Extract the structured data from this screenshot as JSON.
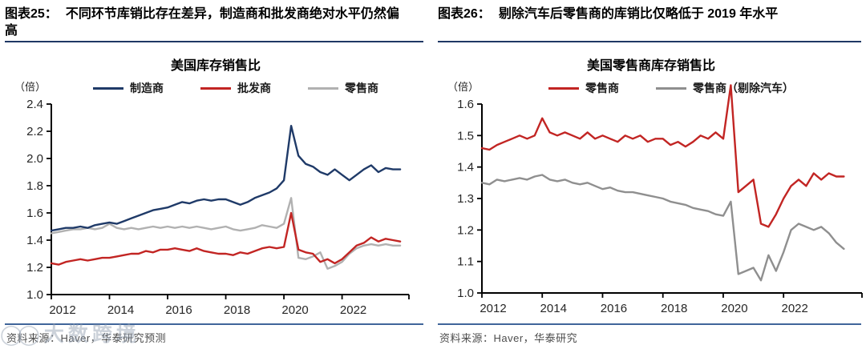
{
  "page": {
    "watermark": "大数跨境"
  },
  "panels": [
    {
      "figure_label": "图表25：",
      "figure_title": "不同环节库销比存在差异，制造商和批发商绝对水平仍然偏高",
      "source": "资料来源：Haver，华泰研究预测"
    },
    {
      "figure_label": "图表26：",
      "figure_title": "剔除汽车后零售商的库销比仅略低于 2019 年水平",
      "source": "资料来源：Haver，华泰研究"
    }
  ],
  "chart_data": [
    {
      "type": "line",
      "title": "美国库存销售比",
      "unit_label": "（倍）",
      "ylim": [
        1.0,
        2.4
      ],
      "yticks": [
        1.0,
        1.2,
        1.4,
        1.6,
        1.8,
        2.0,
        2.2,
        2.4
      ],
      "xlim": [
        2012,
        2024.3
      ],
      "xticks": [
        2012,
        2014,
        2016,
        2018,
        2020,
        2022
      ],
      "x_start": 2012.0,
      "x_step": 0.25,
      "grid": false,
      "legend_position": "top",
      "series": [
        {
          "name": "制造商",
          "color": "#1f3a68",
          "values": [
            1.47,
            1.48,
            1.49,
            1.49,
            1.5,
            1.49,
            1.51,
            1.52,
            1.53,
            1.52,
            1.54,
            1.56,
            1.58,
            1.6,
            1.62,
            1.63,
            1.64,
            1.66,
            1.68,
            1.67,
            1.69,
            1.7,
            1.69,
            1.7,
            1.7,
            1.68,
            1.66,
            1.68,
            1.71,
            1.73,
            1.75,
            1.78,
            1.84,
            2.24,
            2.02,
            1.96,
            1.94,
            1.9,
            1.88,
            1.92,
            1.88,
            1.84,
            1.88,
            1.92,
            1.95,
            1.9,
            1.93,
            1.92,
            1.92
          ]
        },
        {
          "name": "批发商",
          "color": "#c22523",
          "values": [
            1.23,
            1.22,
            1.24,
            1.25,
            1.26,
            1.25,
            1.26,
            1.27,
            1.27,
            1.28,
            1.29,
            1.3,
            1.3,
            1.32,
            1.31,
            1.33,
            1.33,
            1.34,
            1.33,
            1.32,
            1.34,
            1.32,
            1.31,
            1.3,
            1.3,
            1.29,
            1.31,
            1.3,
            1.32,
            1.34,
            1.35,
            1.34,
            1.35,
            1.6,
            1.33,
            1.31,
            1.3,
            1.24,
            1.26,
            1.23,
            1.26,
            1.31,
            1.36,
            1.38,
            1.42,
            1.39,
            1.41,
            1.4,
            1.39
          ]
        },
        {
          "name": "零售商",
          "color": "#b1b1b1",
          "values": [
            1.45,
            1.46,
            1.47,
            1.48,
            1.48,
            1.49,
            1.48,
            1.49,
            1.52,
            1.49,
            1.48,
            1.49,
            1.48,
            1.49,
            1.5,
            1.49,
            1.5,
            1.49,
            1.5,
            1.49,
            1.5,
            1.49,
            1.48,
            1.49,
            1.5,
            1.48,
            1.47,
            1.48,
            1.49,
            1.51,
            1.5,
            1.49,
            1.52,
            1.71,
            1.27,
            1.26,
            1.28,
            1.31,
            1.19,
            1.21,
            1.24,
            1.3,
            1.34,
            1.36,
            1.37,
            1.36,
            1.37,
            1.36,
            1.36
          ]
        }
      ]
    },
    {
      "type": "line",
      "title": "美国零售商库存销售比",
      "unit_label": "（倍）",
      "ylim": [
        1.0,
        1.6
      ],
      "yticks": [
        1.0,
        1.1,
        1.2,
        1.3,
        1.4,
        1.5,
        1.6
      ],
      "xlim": [
        2012,
        2024.6
      ],
      "xticks": [
        2012,
        2014,
        2016,
        2018,
        2020,
        2022
      ],
      "x_start": 2012.0,
      "x_step": 0.25,
      "grid": false,
      "legend_position": "top",
      "series": [
        {
          "name": "零售商",
          "color": "#c22523",
          "values": [
            1.46,
            1.455,
            1.47,
            1.48,
            1.49,
            1.5,
            1.49,
            1.5,
            1.555,
            1.51,
            1.5,
            1.51,
            1.5,
            1.49,
            1.51,
            1.49,
            1.5,
            1.49,
            1.48,
            1.5,
            1.49,
            1.5,
            1.48,
            1.49,
            1.49,
            1.47,
            1.48,
            1.465,
            1.48,
            1.5,
            1.49,
            1.51,
            1.49,
            1.66,
            1.32,
            1.34,
            1.36,
            1.22,
            1.21,
            1.25,
            1.3,
            1.34,
            1.36,
            1.34,
            1.38,
            1.36,
            1.38,
            1.37,
            1.37
          ]
        },
        {
          "name": "零售商（剔除汽车）",
          "color": "#8f8f8f",
          "values": [
            1.35,
            1.345,
            1.36,
            1.355,
            1.36,
            1.365,
            1.36,
            1.37,
            1.375,
            1.36,
            1.355,
            1.36,
            1.35,
            1.345,
            1.35,
            1.34,
            1.33,
            1.335,
            1.325,
            1.32,
            1.32,
            1.315,
            1.31,
            1.305,
            1.3,
            1.29,
            1.285,
            1.28,
            1.27,
            1.265,
            1.26,
            1.25,
            1.245,
            1.29,
            1.06,
            1.07,
            1.08,
            1.04,
            1.12,
            1.07,
            1.13,
            1.2,
            1.22,
            1.21,
            1.2,
            1.21,
            1.19,
            1.16,
            1.14
          ]
        }
      ]
    }
  ]
}
